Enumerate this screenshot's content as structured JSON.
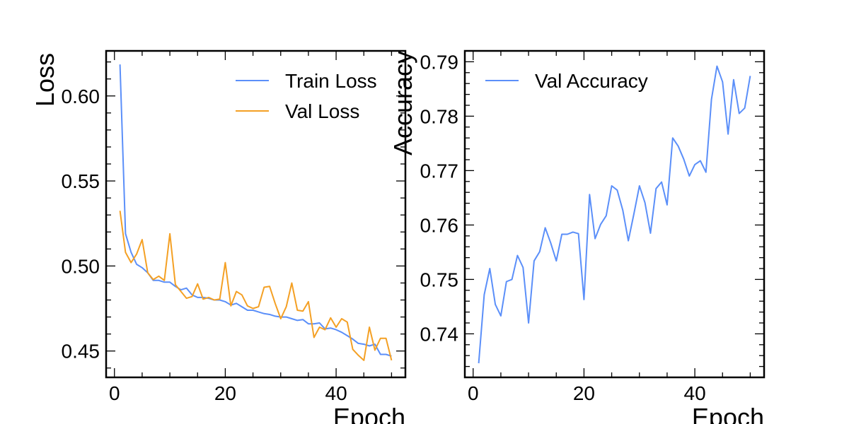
{
  "chart_data": [
    {
      "type": "line",
      "xlabel": "Epoch",
      "ylabel": "Loss",
      "xlim": [
        -1.5,
        52.5
      ],
      "ylim": [
        0.4345,
        0.6265
      ],
      "xticks": [
        0,
        20,
        40
      ],
      "yticks": [
        0.45,
        0.5,
        0.55,
        0.6
      ],
      "ytick_labels": [
        "0.45",
        "0.50",
        "0.55",
        "0.60"
      ],
      "legend": "top-right",
      "grid": false,
      "x": [
        1,
        2,
        3,
        4,
        5,
        6,
        7,
        8,
        9,
        10,
        11,
        12,
        13,
        14,
        15,
        16,
        17,
        18,
        19,
        20,
        21,
        22,
        23,
        24,
        25,
        26,
        27,
        28,
        29,
        30,
        31,
        32,
        33,
        34,
        35,
        36,
        37,
        38,
        39,
        40,
        41,
        42,
        43,
        44,
        45,
        46,
        47,
        48,
        49,
        50
      ],
      "series": [
        {
          "name": "Train Loss",
          "color": "#5b8ff9",
          "values": [
            0.6185,
            0.519,
            0.508,
            0.501,
            0.499,
            0.496,
            0.4915,
            0.4915,
            0.4905,
            0.4905,
            0.488,
            0.486,
            0.487,
            0.483,
            0.4815,
            0.4815,
            0.481,
            0.48,
            0.48,
            0.479,
            0.477,
            0.478,
            0.476,
            0.474,
            0.474,
            0.473,
            0.472,
            0.4715,
            0.4705,
            0.47,
            0.47,
            0.469,
            0.468,
            0.4685,
            0.466,
            0.466,
            0.4665,
            0.463,
            0.4635,
            0.4625,
            0.461,
            0.459,
            0.457,
            0.4545,
            0.454,
            0.453,
            0.454,
            0.448,
            0.448,
            0.447
          ]
        },
        {
          "name": "Val Loss",
          "color": "#f4a024",
          "values": [
            0.5325,
            0.508,
            0.502,
            0.507,
            0.5155,
            0.496,
            0.492,
            0.494,
            0.4915,
            0.519,
            0.489,
            0.485,
            0.481,
            0.482,
            0.4895,
            0.4805,
            0.4815,
            0.48,
            0.4805,
            0.502,
            0.4765,
            0.485,
            0.483,
            0.4765,
            0.475,
            0.476,
            0.4875,
            0.488,
            0.478,
            0.469,
            0.476,
            0.49,
            0.474,
            0.4735,
            0.479,
            0.458,
            0.464,
            0.4625,
            0.4695,
            0.464,
            0.469,
            0.467,
            0.451,
            0.4475,
            0.4445,
            0.464,
            0.4505,
            0.4575,
            0.4575,
            0.4445
          ]
        }
      ]
    },
    {
      "type": "line",
      "xlabel": "Epoch",
      "ylabel": "Accuracy",
      "xlim": [
        -1.5,
        52.5
      ],
      "ylim": [
        0.732,
        0.792
      ],
      "xticks": [
        0,
        20,
        40
      ],
      "yticks": [
        0.74,
        0.75,
        0.76,
        0.77,
        0.78,
        0.79
      ],
      "ytick_labels": [
        "0.74",
        "0.75",
        "0.76",
        "0.77",
        "0.78",
        "0.79"
      ],
      "legend": "top-left",
      "grid": false,
      "x": [
        1,
        2,
        3,
        4,
        5,
        6,
        7,
        8,
        9,
        10,
        11,
        12,
        13,
        14,
        15,
        16,
        17,
        18,
        19,
        20,
        21,
        22,
        23,
        24,
        25,
        26,
        27,
        28,
        29,
        30,
        31,
        32,
        33,
        34,
        35,
        36,
        37,
        38,
        39,
        40,
        41,
        42,
        43,
        44,
        45,
        46,
        47,
        48,
        49,
        50
      ],
      "series": [
        {
          "name": "Val Accuracy",
          "color": "#5b8ff9",
          "values": [
            0.7346,
            0.7472,
            0.752,
            0.7454,
            0.7433,
            0.7496,
            0.75,
            0.7544,
            0.7522,
            0.742,
            0.7534,
            0.7551,
            0.7595,
            0.7567,
            0.7534,
            0.7583,
            0.7583,
            0.7587,
            0.7584,
            0.7463,
            0.7656,
            0.7575,
            0.7601,
            0.7617,
            0.7672,
            0.7664,
            0.7627,
            0.7571,
            0.762,
            0.7672,
            0.7641,
            0.7585,
            0.7667,
            0.7679,
            0.7637,
            0.776,
            0.7745,
            0.7721,
            0.769,
            0.7711,
            0.7718,
            0.7697,
            0.7831,
            0.7892,
            0.7863,
            0.7767,
            0.7867,
            0.7805,
            0.7815,
            0.7874
          ]
        }
      ]
    }
  ]
}
